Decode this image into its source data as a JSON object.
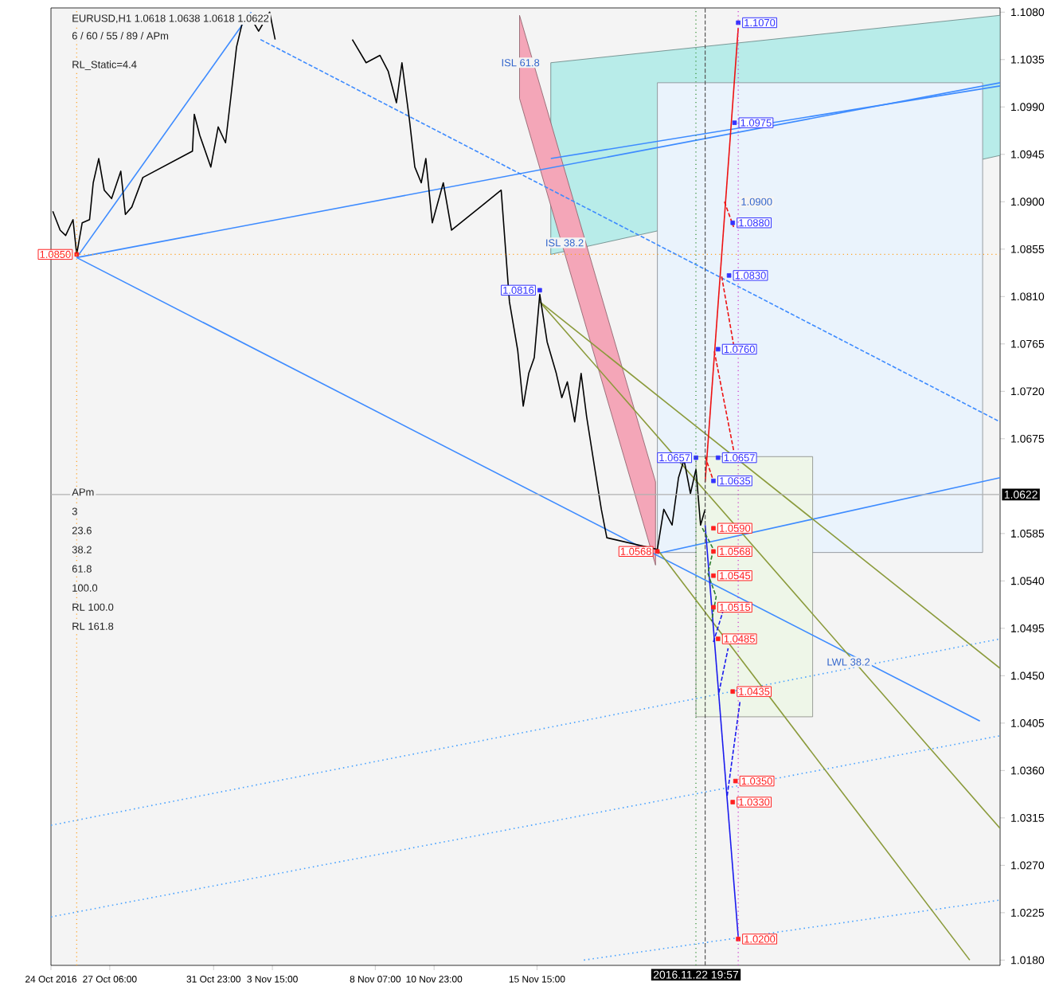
{
  "chart_data": {
    "type": "line",
    "title": "EURUSD,H1 1.0618 1.0638 1.0618 1.0622",
    "subtitle": "6 / 60 / 55 / 89 / APm",
    "xlim": [
      "2016-10-24T14:00",
      "2016-12-06T15:00"
    ],
    "ylim": [
      1.0175,
      1.1084
    ],
    "xticks": [
      {
        "value": "2016-10-24T14:00",
        "label": "24 Oct 2016"
      },
      {
        "value": "2016-10-27T06:00",
        "label": "27 Oct 06:00"
      },
      {
        "value": "2016-10-31T23:00",
        "label": "31 Oct 23:00"
      },
      {
        "value": "2016-11-03T15:00",
        "label": "3 Nov 15:00"
      },
      {
        "value": "2016-11-08T07:00",
        "label": "8 Nov 07:00"
      },
      {
        "value": "2016-11-10T23:00",
        "label": "10 Nov 23:00"
      },
      {
        "value": "2016-11-15T15:00",
        "label": "15 Nov 15:00"
      }
    ],
    "yticks": [
      {
        "value": 1.108,
        "label": "1.1080"
      },
      1.1035,
      {
        "value": 1.099,
        "label": "1.0990"
      },
      1.0945,
      {
        "value": 1.09,
        "label": "1.0900"
      },
      1.0855,
      {
        "value": 1.081,
        "label": "1.0810"
      },
      1.0765,
      {
        "value": 1.072,
        "label": "1.0720"
      },
      1.0675,
      1.0585,
      {
        "value": 1.054,
        "label": "1.0540"
      },
      1.0495,
      {
        "value": 1.045,
        "label": "1.0450"
      },
      1.0405,
      {
        "value": 1.036,
        "label": "1.0360"
      },
      1.0315,
      {
        "value": 1.027,
        "label": "1.0270"
      },
      1.0225,
      {
        "value": 1.018,
        "label": "1.0180"
      }
    ],
    "series": [
      {
        "color": "#b8ece9",
        "x": [
          "2016-11-16T06:00",
          "2016-12-06T15:00"
        ],
        "values": [
          null,
          null
        ],
        "lower": [
          1.085,
          1.0944
        ],
        "upper": [
          1.1032,
          1.1077
        ]
      },
      {
        "color": "#eaf3fc",
        "x": [
          "2016-11-21T02:00",
          "2016-12-05T20:00"
        ],
        "values": [
          null,
          null
        ],
        "lower": [
          1.0567,
          1.0567
        ],
        "upper": [
          1.1013,
          1.1013
        ]
      },
      {
        "color": "#eef6e8",
        "x": [
          "2016-11-22T20:00",
          "2016-11-28T03:00"
        ],
        "values": [
          null,
          null
        ],
        "lower": [
          1.0411,
          1.0411
        ],
        "upper": [
          1.0658,
          1.0658
        ]
      },
      {
        "color": "#f4a6b8",
        "x": [
          "2016-11-14T20:00",
          "2016-11-21T00:00"
        ],
        "values": [
          null,
          null
        ],
        "lower": [
          1.0998,
          1.0555
        ],
        "upper": [
          1.1077,
          1.0634
        ]
      },
      {
        "color": "#3d8bff",
        "x": [
          "2016-11-16T06:00",
          "2016-12-06T15:00"
        ],
        "values": [
          1.0941,
          1.101
        ]
      },
      {
        "color": "#3d8bff",
        "x": [
          "2016-10-25T18:00",
          "2016-11-02T16:00"
        ],
        "values": [
          1.0847,
          1.108
        ]
      },
      {
        "color": "#3d8bff",
        "x": [
          "2016-10-25T18:00",
          "2016-12-06T15:00"
        ],
        "values": [
          1.0847,
          1.1013
        ]
      },
      {
        "color": "#3d8bff",
        "x": [
          "2016-10-25T18:00",
          "2016-12-05T17:00"
        ],
        "values": [
          1.0847,
          1.0407
        ]
      },
      {
        "color": "#3d8bff",
        "x": [
          "2016-11-21T02:00",
          "2016-12-06T15:00"
        ],
        "values": [
          1.0566,
          1.0638
        ]
      },
      {
        "color": "#3d8bff",
        "line_style": "dashed",
        "x": [
          "2016-11-03T02:00",
          "2016-12-06T15:00"
        ],
        "values": [
          1.1054,
          1.0691
        ]
      },
      {
        "color": "#4aa3ff",
        "line_style": "dotted",
        "x": [
          "2016-10-24T14:00",
          "2016-12-06T15:00"
        ],
        "values": [
          1.0308,
          1.0485
        ]
      },
      {
        "color": "#4aa3ff",
        "line_style": "dotted",
        "x": [
          "2016-10-24T14:00",
          "2016-12-06T15:00"
        ],
        "values": [
          1.0221,
          1.0393
        ]
      },
      {
        "color": "#4aa3ff",
        "line_style": "dotted",
        "x": [
          "2016-11-17T18:00",
          "2016-12-06T15:00"
        ],
        "values": [
          1.018,
          1.0237
        ]
      },
      {
        "color": "#8a9a3a",
        "x": [
          "2016-11-15T18:00",
          "2016-12-06T15:00"
        ],
        "values": [
          1.0805,
          1.0457
        ]
      },
      {
        "color": "#8a9a3a",
        "x": [
          "2016-11-21T02:00",
          "2016-12-05T06:00"
        ],
        "values": [
          1.057,
          1.018
        ]
      },
      {
        "color": "#8a9a3a",
        "x": [
          "2016-11-15T18:00",
          "2016-12-06T15:00"
        ],
        "values": [
          1.0805,
          1.0305
        ]
      },
      {
        "color": "#000000",
        "x": [
          "2016-10-24T16:00",
          "2016-10-25T00:00",
          "2016-10-25T06:00",
          "2016-10-25T14:00",
          "2016-10-25T18:00",
          "2016-10-26T00:00",
          "2016-10-26T08:00",
          "2016-10-26T12:00",
          "2016-10-26T18:00",
          "2016-10-27T00:00",
          "2016-10-27T08:00",
          "2016-10-27T18:00",
          "2016-10-27T23:00",
          "2016-10-28T06:00",
          "2016-10-28T18:00",
          "2016-10-31T00:00",
          "2016-10-31T02:00",
          "2016-10-31T08:00",
          "2016-10-31T20:00",
          "2016-11-01T04:00",
          "2016-11-01T12:00",
          "2016-11-01T18:00",
          "2016-11-02T00:00",
          "2016-11-02T06:00",
          "2016-11-02T14:00",
          "2016-11-03T00:00",
          "2016-11-03T12:00",
          "2016-11-03T18:00",
          "2016-11-04T12:00",
          "2016-11-07T06:00",
          "2016-11-07T21:00",
          "2016-11-08T12:00",
          "2016-11-08T21:00",
          "2016-11-09T06:00",
          "2016-11-09T12:00",
          "2016-11-09T20:00",
          "2016-11-10T02:00",
          "2016-11-10T09:00",
          "2016-11-10T14:00",
          "2016-11-10T21:00",
          "2016-11-11T09:00",
          "2016-11-11T18:00",
          "2016-11-14T00:00",
          "2016-11-14T09:00",
          "2016-11-14T18:00",
          "2016-11-15T00:00",
          "2016-11-15T06:00",
          "2016-11-15T12:00",
          "2016-11-15T18:00",
          "2016-11-16T02:00",
          "2016-11-16T12:00",
          "2016-11-16T18:00",
          "2016-11-17T00:00",
          "2016-11-17T08:00",
          "2016-11-17T15:00",
          "2016-11-17T21:00",
          "2016-11-18T06:00",
          "2016-11-18T13:00",
          "2016-11-18T19:00",
          "2016-11-21T02:00",
          "2016-11-21T09:00",
          "2016-11-21T18:00",
          "2016-11-22T01:00",
          "2016-11-22T07:00",
          "2016-11-22T14:00",
          "2016-11-22T20:00",
          "2016-11-23T01:00",
          "2016-11-23T06:00"
        ],
        "values": [
          1.0891,
          1.0873,
          1.0868,
          1.0883,
          1.085,
          1.088,
          1.0883,
          1.0918,
          1.0941,
          1.0911,
          1.0903,
          1.0929,
          1.0888,
          1.0895,
          1.0923,
          1.0948,
          1.0983,
          1.0963,
          1.0933,
          1.0971,
          1.0956,
          1.1001,
          1.1047,
          1.1069,
          1.1077,
          1.1062,
          1.108,
          1.1054,
          null,
          1.1054,
          1.1032,
          1.1039,
          1.1024,
          1.0994,
          1.1032,
          1.0979,
          1.0933,
          1.0918,
          1.0941,
          1.088,
          1.0918,
          1.0873,
          1.0911,
          1.0805,
          1.0759,
          1.0706,
          1.0737,
          1.0752,
          1.0812,
          1.0767,
          1.0737,
          1.0714,
          1.0729,
          1.0691,
          1.0737,
          1.0696,
          1.0646,
          1.0608,
          1.0581,
          1.057,
          1.0608,
          1.0593,
          1.0638,
          1.0655,
          1.0623,
          1.0646,
          1.0593,
          1.0608
        ]
      },
      {
        "color": "#ee1111",
        "x": [
          "2016-11-23T06:00",
          "2016-11-24T18:00"
        ],
        "values": [
          1.0634,
          1.1065
        ]
      },
      {
        "color": "#ee1111",
        "line_style": "dashed",
        "x": [
          "2016-11-24T03:00",
          "2016-11-24T13:00"
        ],
        "values": [
          1.09,
          1.0876
        ]
      },
      {
        "color": "#ee1111",
        "line_style": "dashed",
        "x": [
          "2016-11-24T00:00",
          "2016-11-24T13:00"
        ],
        "values": [
          1.0829,
          1.0764
        ]
      },
      {
        "color": "#ee1111",
        "line_style": "dashed",
        "x": [
          "2016-11-23T16:00",
          "2016-11-24T13:00"
        ],
        "values": [
          1.0758,
          1.0664
        ]
      },
      {
        "color": "#ee1111",
        "line_style": "dashed",
        "x": [
          "2016-11-23T06:00",
          "2016-11-23T15:00"
        ],
        "values": [
          1.0658,
          1.0635
        ]
      },
      {
        "color": "#1a1aee",
        "x": [
          "2016-11-23T06:00",
          "2016-11-24T18:00"
        ],
        "values": [
          1.0593,
          1.0202
        ]
      },
      {
        "color": "#1a1aee",
        "line_style": "dashed",
        "x": [
          "2016-11-23T15:00",
          "2016-11-24T01:00"
        ],
        "values": [
          1.0482,
          1.051
        ]
      },
      {
        "color": "#1a1aee",
        "line_style": "dashed",
        "x": [
          "2016-11-23T21:00",
          "2016-11-24T07:00"
        ],
        "values": [
          1.0434,
          1.0476
        ]
      },
      {
        "color": "#1a1aee",
        "line_style": "dashed",
        "x": [
          "2016-11-24T06:00",
          "2016-11-24T20:00"
        ],
        "values": [
          1.0336,
          1.0426
        ]
      },
      {
        "color": "#2e7d32",
        "line_style": "dashed",
        "x": [
          "2016-11-23T03:00",
          "2016-11-23T15:00",
          "2016-11-23T09:00",
          "2016-11-23T18:00",
          "2016-11-23T13:00"
        ],
        "values": [
          1.059,
          1.057,
          1.0547,
          1.0525,
          1.0502
        ]
      },
      {
        "type": "scatter",
        "color": "#3333ff",
        "marker": "square",
        "x": [
          "2016-11-24T18:00",
          "2016-11-24T14:00",
          "2016-11-24T12:00",
          "2016-11-24T08:00",
          "2016-11-23T20:00",
          "2016-11-23T20:00",
          "2016-11-23T15:00",
          "2016-11-22T20:00",
          "2016-11-15T18:00"
        ],
        "values": [
          1.107,
          1.0975,
          1.088,
          1.083,
          1.076,
          1.0657,
          1.0635,
          1.0657,
          1.0816
        ],
        "value_labels": [
          "1.1070",
          "1.0975",
          "1.0880",
          "1.0830",
          "1.0760",
          "1.0657",
          "1.0635",
          "1.0657",
          "1.0816"
        ]
      },
      {
        "type": "scatter",
        "color": "#ff2020",
        "marker": "square",
        "x": [
          "2016-10-25T18:00",
          "2016-11-23T15:00",
          "2016-11-23T15:00",
          "2016-11-23T15:00",
          "2016-11-23T15:00",
          "2016-11-23T20:00",
          "2016-11-24T12:00",
          "2016-11-24T15:00",
          "2016-11-24T12:00",
          "2016-11-24T18:00",
          "2016-11-21T02:00"
        ],
        "values": [
          1.085,
          1.059,
          1.0568,
          1.0545,
          1.0515,
          1.0485,
          1.0435,
          1.035,
          1.033,
          1.02,
          1.0568
        ],
        "value_labels": [
          "1.0850",
          "1.0590",
          "1.0568",
          "1.0545",
          "1.0515",
          "1.0485",
          "1.0435",
          "1.0350",
          "1.0330",
          "1.0200",
          "1.0568"
        ]
      }
    ],
    "ref_lines": [
      {
        "axis": "y",
        "value": 1.0622,
        "label": "1.0622",
        "color": "#b0b0b0"
      },
      {
        "axis": "x",
        "value": "2016-11-22T19:57",
        "label": "2016.11.22 19:57",
        "color": "#2e8b2e",
        "line_style": "dotted"
      },
      {
        "axis": "x",
        "value": "2016-11-23T06:00",
        "color": "#555555",
        "line_style": "dashed"
      },
      {
        "axis": "x",
        "value": "2016-11-24T18:00",
        "color": "#cc33cc",
        "line_style": "dotted"
      },
      {
        "axis": "y",
        "value": 1.085,
        "color": "#ffa020",
        "line_style": "dotted"
      },
      {
        "axis": "x",
        "value": "2016-10-25T18:00",
        "color": "#ffa020",
        "line_style": "dotted"
      }
    ],
    "annotations": [
      "RL_Static=4.4",
      {
        "text": "1.0900",
        "x": "2016-11-25T14:00",
        "y": 1.09
      },
      "APm",
      "3",
      {
        "text": "ISL 61.8",
        "x": "2016-11-14T21:00",
        "y": 1.1032
      },
      {
        "text": "ISL 38.2",
        "x": "2016-11-16T21:00",
        "y": 1.0861
      },
      {
        "text": "LWL 38.2",
        "x": "2016-11-29T18:00",
        "y": 1.0463
      },
      "23.6",
      "38.2",
      "61.8",
      "100.0",
      "RL 100.0",
      "RL 161.8"
    ]
  }
}
